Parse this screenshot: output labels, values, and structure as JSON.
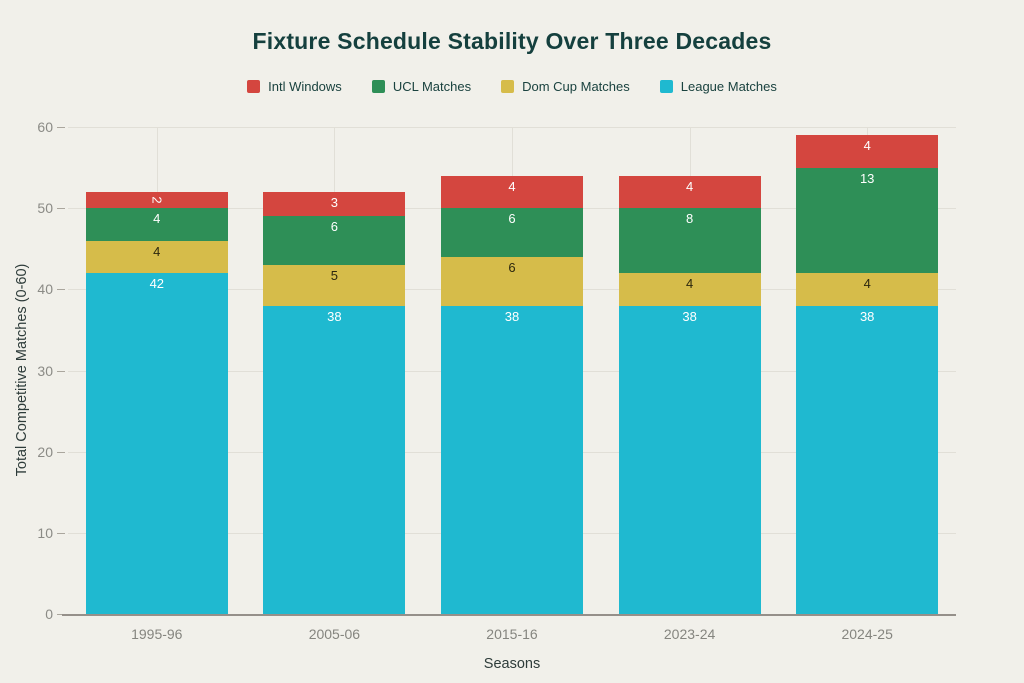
{
  "title": "Fixture Schedule Stability Over Three Decades",
  "legend": [
    {
      "label": "Intl Windows",
      "color": "#d4463f"
    },
    {
      "label": "UCL Matches",
      "color": "#2e8f57"
    },
    {
      "label": "Dom Cup Matches",
      "color": "#d6bc4a"
    },
    {
      "label": "League Matches",
      "color": "#1fb9d0"
    }
  ],
  "chart_data": {
    "type": "bar",
    "stacked": true,
    "title": "Fixture Schedule Stability Over Three Decades",
    "xlabel": "Seasons",
    "ylabel": "Total Competitive Matches (0-60)",
    "categories": [
      "1995-96",
      "2005-06",
      "2015-16",
      "2023-24",
      "2024-25"
    ],
    "series": [
      {
        "name": "League Matches",
        "color": "#1fb9d0",
        "label_color": "#ffffff",
        "values": [
          42,
          38,
          38,
          38,
          38
        ]
      },
      {
        "name": "Dom Cup Matches",
        "color": "#d6bc4a",
        "label_color": "#2c270e",
        "values": [
          4,
          5,
          6,
          4,
          4
        ]
      },
      {
        "name": "UCL Matches",
        "color": "#2e8f57",
        "label_color": "#ffffff",
        "values": [
          4,
          6,
          6,
          8,
          13
        ]
      },
      {
        "name": "Intl Windows",
        "color": "#d4463f",
        "label_color": "#ffffff",
        "values": [
          2,
          3,
          4,
          4,
          4
        ]
      }
    ],
    "totals": [
      52,
      52,
      54,
      54,
      59
    ],
    "ylim": [
      0,
      60
    ],
    "yticks": [
      0,
      10,
      20,
      30,
      40,
      50,
      60
    ],
    "grid": true,
    "legend_position": "top-center"
  },
  "colors": {
    "background": "#f1f0ea",
    "title_text": "#15403e",
    "grid": "#e1dfd7",
    "axis_line": "#95908a",
    "tick_text": "#8b8b86",
    "axis_title_text": "#2e3c3a"
  }
}
